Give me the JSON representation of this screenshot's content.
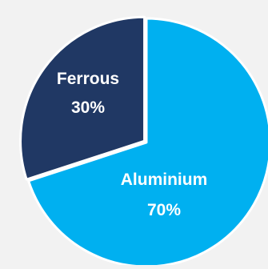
{
  "chart_data": {
    "type": "pie",
    "title": "",
    "slices": [
      {
        "label": "Aluminium",
        "value": 70,
        "value_label": "70%",
        "color": "#00b0f0"
      },
      {
        "label": "Ferrous",
        "value": 30,
        "value_label": "30%",
        "color": "#203864"
      }
    ],
    "start": "12 o'clock",
    "direction": "clockwise",
    "slice_border_color": "#ffffff",
    "legend": "none"
  }
}
